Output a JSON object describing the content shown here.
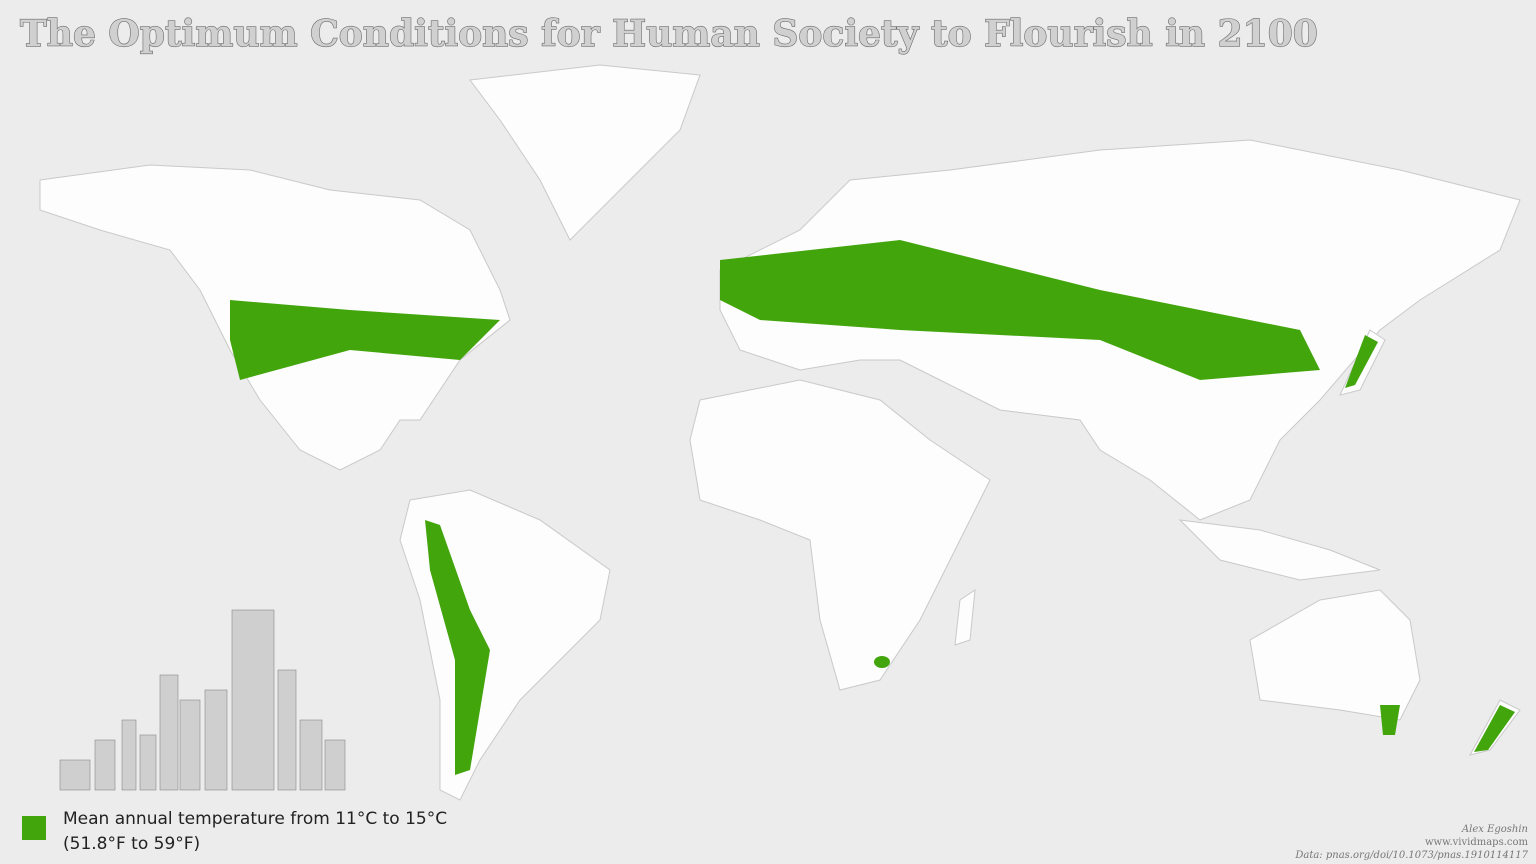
{
  "title": "The Optimum Conditions for Human Society to Flourish in 2100",
  "legend": {
    "color": "#42a50c",
    "lines": [
      "Mean annual temperature from 11°C to 15°C",
      "(51.8°F to 59°F)"
    ]
  },
  "credits": {
    "author": "Alex Egoshin",
    "site": "www.vividmaps.com",
    "data": "Data: pnas.org/doi/10.1073/pnas.1910114117"
  }
}
